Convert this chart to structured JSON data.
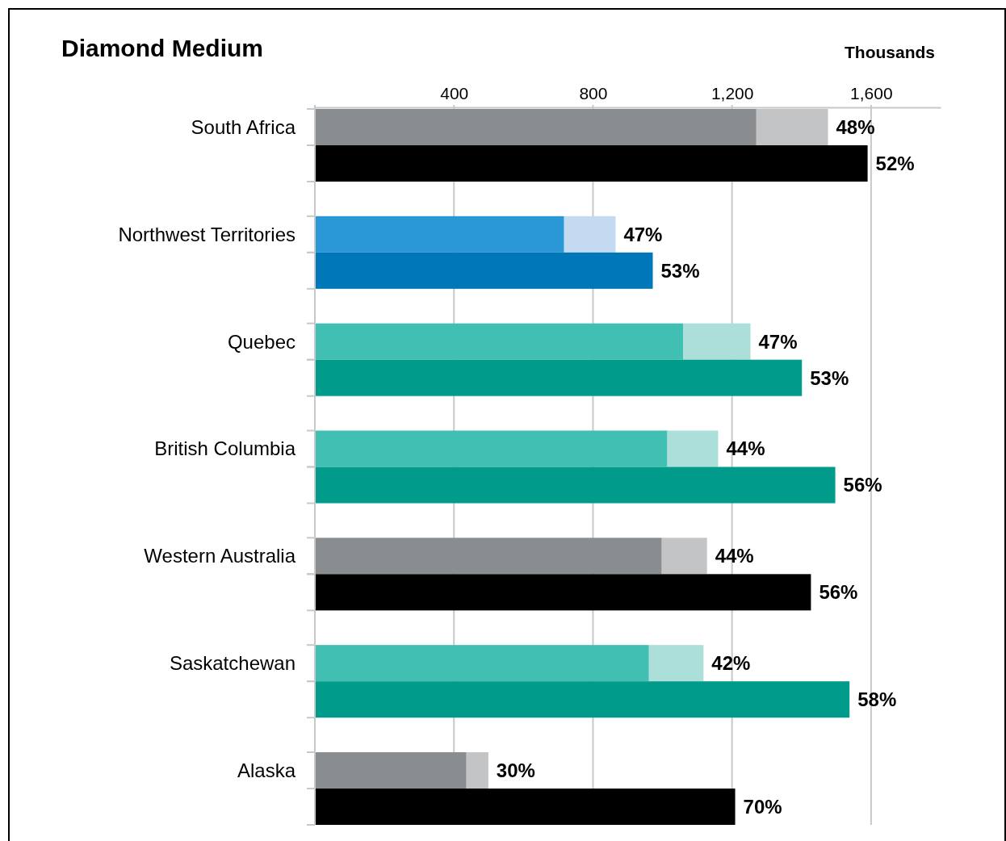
{
  "chart_data": {
    "type": "bar",
    "orientation": "horizontal",
    "stacked": true,
    "title": "Diamond Medium",
    "xlabel": "Thousands",
    "categories": [
      "South Africa",
      null,
      "Northwest Territories",
      null,
      "Quebec",
      null,
      "British Columbia",
      null,
      "Western Australia",
      null,
      "Saskatchewan",
      null,
      "Alaska",
      null
    ],
    "xlim": [
      0,
      1800
    ],
    "xticks": [
      400,
      800,
      {
        "value": 1200,
        "label": "1,200"
      },
      {
        "value": 1600,
        "label": "1,600"
      }
    ],
    "grid": "x",
    "series": [
      {
        "colors": [
          "#8a8d8f",
          null,
          "#2a98d6",
          null,
          "#40bfb2",
          null,
          "#40bfb2",
          null,
          "#8a8d8f",
          null,
          "#40bfb2",
          null,
          "#8a8d8f",
          null
        ],
        "values": [
          1270,
          null,
          717,
          null,
          1060,
          null,
          1014,
          null,
          998,
          null,
          961,
          null,
          436,
          null
        ]
      },
      {
        "colors": [
          "#c3c4c6",
          null,
          "#c3daf0",
          null,
          "#acdfda",
          null,
          "#acdfda",
          null,
          "#c3c4c6",
          null,
          "#acdfda",
          null,
          "#c3c4c6",
          null
        ],
        "values": [
          206,
          null,
          148,
          null,
          193,
          null,
          146,
          null,
          130,
          null,
          157,
          null,
          63,
          null
        ]
      },
      {
        "colors": [
          null,
          "#000000",
          null,
          "#0077b8",
          null,
          "#009b8a",
          null,
          "#009b8a",
          null,
          "#000000",
          null,
          "#009b8a",
          null,
          "#000000"
        ],
        "values": [
          null,
          1590,
          null,
          972,
          null,
          1401,
          null,
          1497,
          null,
          1427,
          null,
          1538,
          null,
          1209
        ]
      }
    ],
    "annotations": [
      {
        "text": "48%",
        "x": 1476,
        "y": "South Africa"
      },
      "52%",
      {
        "text": "47%",
        "x": 865,
        "y": "Northwest Territories"
      },
      "53%",
      {
        "text": "47%",
        "x": 1253,
        "y": "Quebec"
      },
      "53%",
      {
        "text": "44%",
        "x": 1160,
        "y": "British Columbia"
      },
      "56%",
      {
        "text": "44%",
        "x": 1128,
        "y": "Western Australia"
      },
      "56%",
      {
        "text": "42%",
        "x": 1118,
        "y": "Saskatchewan"
      },
      "58%",
      {
        "text": "30%",
        "x": 499,
        "y": "Alaska"
      },
      "70%"
    ]
  }
}
